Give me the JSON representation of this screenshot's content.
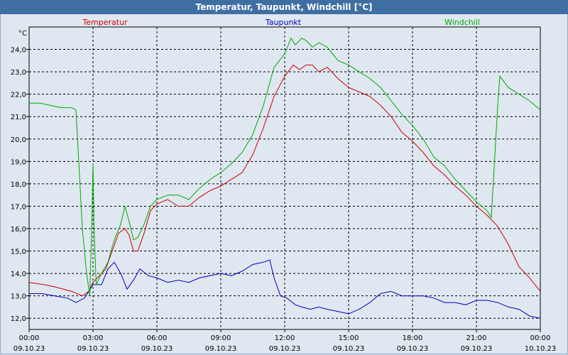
{
  "window": {
    "title": "Temperatur, Taupunkt, Windchill [°C]"
  },
  "chart_data": {
    "type": "line",
    "title": "Temperatur, Taupunkt, Windchill [°C]",
    "y_unit": "°C",
    "ylim": [
      11.5,
      25.0
    ],
    "y_ticks": [
      "12,0",
      "13,0",
      "14,0",
      "15,0",
      "16,0",
      "17,0",
      "18,0",
      "19,0",
      "20,0",
      "21,0",
      "22,0",
      "23,0",
      "24,0"
    ],
    "xlim_hours": [
      0,
      24
    ],
    "x_ticks": [
      {
        "time": "00:00",
        "date": "09.10.23"
      },
      {
        "time": "03:00",
        "date": "09.10.23"
      },
      {
        "time": "06:00",
        "date": "09.10.23"
      },
      {
        "time": "09:00",
        "date": "09.10.23"
      },
      {
        "time": "12:00",
        "date": "09.10.23"
      },
      {
        "time": "15:00",
        "date": "09.10.23"
      },
      {
        "time": "18:00",
        "date": "09.10.23"
      },
      {
        "time": "21:00",
        "date": "09.10.23"
      },
      {
        "time": "00:00",
        "date": "10.10.23"
      }
    ],
    "grid": true,
    "series": [
      {
        "name": "Temperatur",
        "color": "#cc0000",
        "points": [
          [
            0,
            13.6
          ],
          [
            0.7,
            13.5
          ],
          [
            1.2,
            13.4
          ],
          [
            2.0,
            13.2
          ],
          [
            2.5,
            13.0
          ],
          [
            2.8,
            13.2
          ],
          [
            3.0,
            13.6
          ],
          [
            3.3,
            13.9
          ],
          [
            3.6,
            14.2
          ],
          [
            3.9,
            15.0
          ],
          [
            4.2,
            15.8
          ],
          [
            4.5,
            16.0
          ],
          [
            4.7,
            15.7
          ],
          [
            4.9,
            15.0
          ],
          [
            5.1,
            15.0
          ],
          [
            5.4,
            15.8
          ],
          [
            5.7,
            16.8
          ],
          [
            6.0,
            17.1
          ],
          [
            6.5,
            17.3
          ],
          [
            7.0,
            17.0
          ],
          [
            7.5,
            17.0
          ],
          [
            8.0,
            17.4
          ],
          [
            8.5,
            17.7
          ],
          [
            9.0,
            17.9
          ],
          [
            9.5,
            18.2
          ],
          [
            10.0,
            18.5
          ],
          [
            10.5,
            19.3
          ],
          [
            11.0,
            20.5
          ],
          [
            11.5,
            21.9
          ],
          [
            12.0,
            22.8
          ],
          [
            12.4,
            23.3
          ],
          [
            12.7,
            23.1
          ],
          [
            13.0,
            23.3
          ],
          [
            13.3,
            23.3
          ],
          [
            13.6,
            23.0
          ],
          [
            14.0,
            23.2
          ],
          [
            14.5,
            22.7
          ],
          [
            15.0,
            22.3
          ],
          [
            15.5,
            22.1
          ],
          [
            16.0,
            21.9
          ],
          [
            16.5,
            21.5
          ],
          [
            17.0,
            21.0
          ],
          [
            17.5,
            20.3
          ],
          [
            18.0,
            19.9
          ],
          [
            18.5,
            19.4
          ],
          [
            19.0,
            18.8
          ],
          [
            19.5,
            18.4
          ],
          [
            20.0,
            17.9
          ],
          [
            20.5,
            17.5
          ],
          [
            21.0,
            17.0
          ],
          [
            21.5,
            16.6
          ],
          [
            22.0,
            16.1
          ],
          [
            22.5,
            15.3
          ],
          [
            23.0,
            14.3
          ],
          [
            23.5,
            13.8
          ],
          [
            24.0,
            13.2
          ]
        ]
      },
      {
        "name": "Taupunkt",
        "color": "#0000bb",
        "points": [
          [
            0,
            13.1
          ],
          [
            0.6,
            13.1
          ],
          [
            1.2,
            13.0
          ],
          [
            1.8,
            12.9
          ],
          [
            2.2,
            12.7
          ],
          [
            2.6,
            12.9
          ],
          [
            3.0,
            13.5
          ],
          [
            3.4,
            13.5
          ],
          [
            3.7,
            14.2
          ],
          [
            4.0,
            14.5
          ],
          [
            4.3,
            14.0
          ],
          [
            4.6,
            13.3
          ],
          [
            4.9,
            13.7
          ],
          [
            5.2,
            14.2
          ],
          [
            5.6,
            13.9
          ],
          [
            6.0,
            13.8
          ],
          [
            6.5,
            13.6
          ],
          [
            7.0,
            13.7
          ],
          [
            7.5,
            13.6
          ],
          [
            8.0,
            13.8
          ],
          [
            8.5,
            13.9
          ],
          [
            9.0,
            14.0
          ],
          [
            9.5,
            13.9
          ],
          [
            10.0,
            14.1
          ],
          [
            10.5,
            14.4
          ],
          [
            11.0,
            14.5
          ],
          [
            11.3,
            14.6
          ],
          [
            11.5,
            13.8
          ],
          [
            11.8,
            13.0
          ],
          [
            12.1,
            12.9
          ],
          [
            12.5,
            12.6
          ],
          [
            12.8,
            12.5
          ],
          [
            13.2,
            12.4
          ],
          [
            13.6,
            12.5
          ],
          [
            14.0,
            12.4
          ],
          [
            14.5,
            12.3
          ],
          [
            15.0,
            12.2
          ],
          [
            15.5,
            12.4
          ],
          [
            16.0,
            12.7
          ],
          [
            16.5,
            13.1
          ],
          [
            17.0,
            13.2
          ],
          [
            17.5,
            13.0
          ],
          [
            18.0,
            13.0
          ],
          [
            18.5,
            13.0
          ],
          [
            19.0,
            12.9
          ],
          [
            19.5,
            12.7
          ],
          [
            20.0,
            12.7
          ],
          [
            20.5,
            12.6
          ],
          [
            21.0,
            12.8
          ],
          [
            21.5,
            12.8
          ],
          [
            22.0,
            12.7
          ],
          [
            22.5,
            12.5
          ],
          [
            23.0,
            12.4
          ],
          [
            23.5,
            12.1
          ],
          [
            24.0,
            12.0
          ]
        ]
      },
      {
        "name": "Windchill",
        "color": "#00aa00",
        "points": [
          [
            0,
            21.6
          ],
          [
            0.5,
            21.6
          ],
          [
            1.0,
            21.5
          ],
          [
            1.5,
            21.4
          ],
          [
            2.0,
            21.4
          ],
          [
            2.2,
            21.3
          ],
          [
            2.5,
            16.0
          ],
          [
            2.7,
            14.0
          ],
          [
            2.85,
            13.0
          ],
          [
            2.95,
            16.5
          ],
          [
            3.0,
            18.9
          ],
          [
            3.05,
            16.0
          ],
          [
            3.15,
            13.5
          ],
          [
            3.4,
            14.0
          ],
          [
            3.7,
            14.5
          ],
          [
            4.0,
            15.5
          ],
          [
            4.3,
            16.2
          ],
          [
            4.5,
            17.0
          ],
          [
            4.7,
            16.3
          ],
          [
            4.9,
            15.5
          ],
          [
            5.1,
            15.6
          ],
          [
            5.4,
            16.2
          ],
          [
            5.7,
            17.0
          ],
          [
            6.0,
            17.3
          ],
          [
            6.5,
            17.5
          ],
          [
            7.0,
            17.5
          ],
          [
            7.5,
            17.3
          ],
          [
            8.0,
            17.8
          ],
          [
            8.5,
            18.2
          ],
          [
            9.0,
            18.5
          ],
          [
            9.5,
            18.9
          ],
          [
            10.0,
            19.4
          ],
          [
            10.5,
            20.2
          ],
          [
            11.0,
            21.5
          ],
          [
            11.5,
            23.2
          ],
          [
            12.0,
            23.8
          ],
          [
            12.3,
            24.5
          ],
          [
            12.5,
            24.2
          ],
          [
            12.8,
            24.5
          ],
          [
            13.0,
            24.4
          ],
          [
            13.3,
            24.1
          ],
          [
            13.6,
            24.3
          ],
          [
            14.0,
            24.1
          ],
          [
            14.5,
            23.5
          ],
          [
            15.0,
            23.3
          ],
          [
            15.5,
            23.0
          ],
          [
            16.0,
            22.7
          ],
          [
            16.5,
            22.3
          ],
          [
            17.0,
            21.7
          ],
          [
            17.5,
            21.1
          ],
          [
            18.0,
            20.6
          ],
          [
            18.5,
            20.0
          ],
          [
            19.0,
            19.2
          ],
          [
            19.5,
            18.8
          ],
          [
            20.0,
            18.2
          ],
          [
            20.5,
            17.7
          ],
          [
            21.0,
            17.2
          ],
          [
            21.5,
            16.8
          ],
          [
            21.7,
            16.5
          ],
          [
            22.0,
            21.5
          ],
          [
            22.1,
            22.8
          ],
          [
            22.5,
            22.3
          ],
          [
            23.0,
            22.0
          ],
          [
            23.5,
            21.7
          ],
          [
            24.0,
            21.3
          ]
        ]
      }
    ]
  }
}
